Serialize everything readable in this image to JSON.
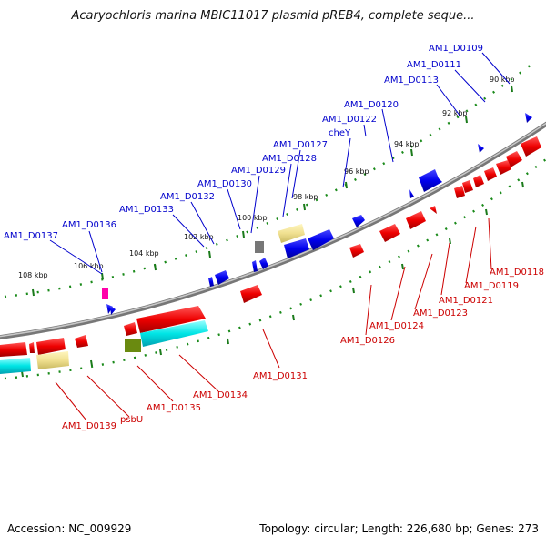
{
  "title": "Acaryochloris marina MBIC11017 plasmid pREB4, complete seque...",
  "footer": {
    "accession": "Accession: NC_009929",
    "stats": "Topology: circular; Length: 226,680 bp; Genes: 273"
  },
  "colors": {
    "label_plus": "#0000cc",
    "label_minus": "#cc0000",
    "backbone": "#888888",
    "tick": "#1a7a1a"
  },
  "ticks": [
    "90 kbp",
    "92 kbp",
    "94 kbp",
    "96 kbp",
    "98 kbp",
    "100 kbp",
    "102 kbp",
    "104 kbp",
    "106 kbp",
    "108 kbp"
  ],
  "labels_plus": [
    "AM1_D0109",
    "AM1_D0111",
    "AM1_D0113",
    "AM1_D0120",
    "AM1_D0122",
    "cheY",
    "AM1_D0127",
    "AM1_D0128",
    "AM1_D0129",
    "AM1_D0130",
    "AM1_D0132",
    "AM1_D0133",
    "AM1_D0136",
    "AM1_D0137"
  ],
  "labels_minus": [
    "AM1_D0118",
    "AM1_D0119",
    "AM1_D0121",
    "AM1_D0123",
    "AM1_D0124",
    "AM1_D0126",
    "AM1_D0131",
    "AM1_D0134",
    "AM1_D0135",
    "psbU",
    "AM1_D0139"
  ]
}
